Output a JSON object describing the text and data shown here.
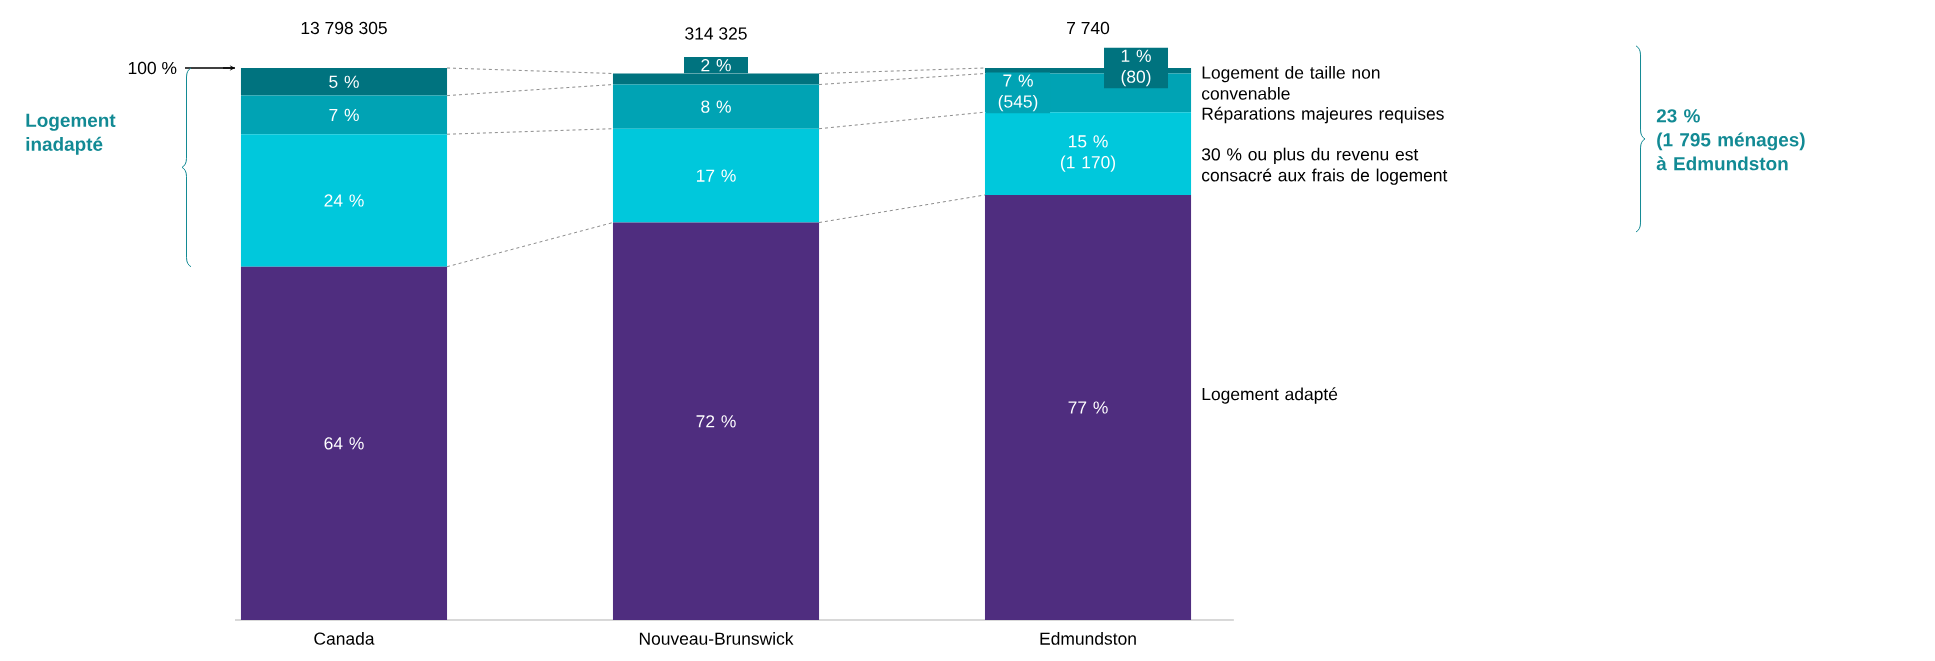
{
  "chart_data": {
    "type": "bar",
    "stacked": true,
    "categories": [
      "Canada",
      "Nouveau-Brunswick",
      "Edmundston"
    ],
    "ylim": [
      0,
      100
    ],
    "yticks": [
      {
        "value": 100,
        "label": "100 %"
      }
    ],
    "series": [
      {
        "name": "Logement adapté",
        "color": "#4f2d7f",
        "values": [
          64,
          72,
          77
        ],
        "value_labels": [
          "64 %",
          "72 %",
          "77 %"
        ]
      },
      {
        "name": "30 % ou plus du revenu est consacré aux frais de logement",
        "color": "#00c8dc",
        "values": [
          24,
          17,
          15
        ],
        "value_labels": [
          "24 %",
          "17 %",
          "15 % (1 170)"
        ]
      },
      {
        "name": "Réparations majeures requises",
        "color": "#00a3b4",
        "values": [
          7,
          8,
          7
        ],
        "value_labels": [
          "7 %",
          "8 %",
          "7 % (545)"
        ]
      },
      {
        "name": "Logement de taille non convenable",
        "color": "#00737f",
        "values": [
          5,
          2,
          1
        ],
        "value_labels": [
          "5 %",
          "2 %",
          "1 % (80)"
        ]
      }
    ],
    "annotations": [
      {
        "text": "13 798 305",
        "x": "Canada",
        "y": 100
      },
      {
        "text": "314 325",
        "x": "Nouveau-Brunswick",
        "y": 99
      },
      {
        "text": "7 740",
        "x": "Edmundston",
        "y": 100
      },
      "Logement inadapté",
      "23 % (1 795 ménages) à Edmundston"
    ]
  }
}
